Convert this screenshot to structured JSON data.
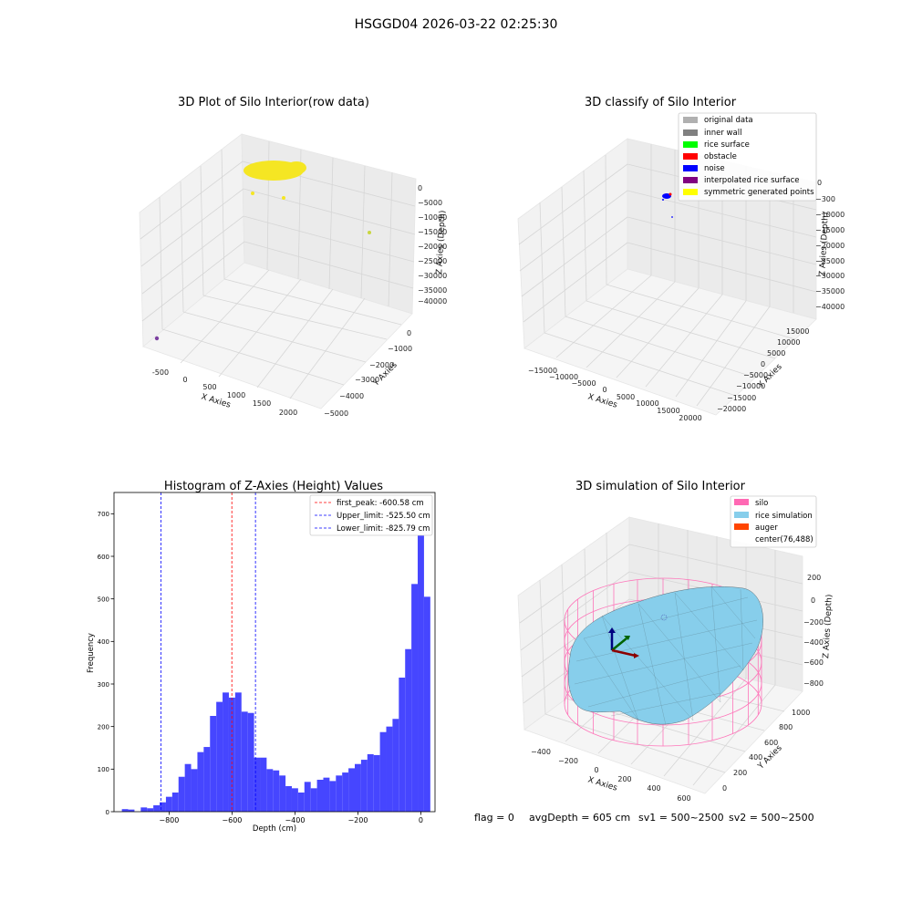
{
  "suptitle": "HSGGD04 2026-03-22 02:25:30",
  "panels": {
    "raw": {
      "title": "3D Plot of Silo Interior(row data)",
      "xlabel": "X Axies",
      "ylabel": "Y Axies",
      "zlabel": "Z Axies (Depth)",
      "xticks": [
        "-500",
        "0",
        "500",
        "1000",
        "1500",
        "2000"
      ],
      "yticks": [
        "0",
        "−1000",
        "−2000",
        "−3000",
        "−4000",
        "−5000"
      ],
      "zticks": [
        "0",
        "−5000",
        "−10000",
        "−15000",
        "−20000",
        "−25000",
        "−30000",
        "−35000",
        "−40000"
      ],
      "colors": {
        "cloud": "#f5e623",
        "point": "#c9d640",
        "outlier": "#7b3fa0"
      }
    },
    "classify": {
      "title": "3D classify of Silo Interior",
      "xlabel": "X Axies",
      "ylabel": "Y Axies",
      "zlabel": "Z Axies (Depth)",
      "xticks": [
        "−15000",
        "−10000",
        "−5000",
        "0",
        "5000",
        "10000",
        "15000",
        "20000"
      ],
      "yticks": [
        "15000",
        "10000",
        "5000",
        "0",
        "−5000",
        "−10000",
        "−15000",
        "−20000"
      ],
      "zticks": [
        "0",
        "−5000",
        "−10000",
        "−15000",
        "−20000",
        "−25000",
        "−30000",
        "−35000",
        "−40000"
      ],
      "zticks_first_visible": "−300",
      "legend": [
        {
          "label": "original data",
          "color": "#b0b0b0"
        },
        {
          "label": "inner wall",
          "color": "#808080"
        },
        {
          "label": "rice surface",
          "color": "#00ff00"
        },
        {
          "label": "obstacle",
          "color": "#ff0000"
        },
        {
          "label": "noise",
          "color": "#0000ff"
        },
        {
          "label": "interpolated rice surface",
          "color": "#800080"
        },
        {
          "label": "symmetric generated points",
          "color": "#ffff00"
        }
      ]
    },
    "simulation": {
      "title": "3D simulation of Silo Interior",
      "xlabel": "X Axies",
      "ylabel": "Y Axies",
      "zlabel": "Z Axies (Depth)",
      "xticks": [
        "−400",
        "−200",
        "0",
        "200",
        "400",
        "600"
      ],
      "yticks": [
        "1000",
        "800",
        "600",
        "400",
        "200",
        "0"
      ],
      "zticks": [
        "200",
        "0",
        "−200",
        "−400",
        "−600",
        "−800"
      ],
      "legend": [
        {
          "label": "silo",
          "color": "#ff69b4"
        },
        {
          "label": "rice simulation",
          "color": "#87ceeb"
        },
        {
          "label": "auger",
          "color": "#ff4500"
        },
        {
          "label": "center(76,488)",
          "color": ""
        }
      ]
    }
  },
  "chart_data": {
    "type": "bar",
    "title": "Histogram of Z-Axies (Height) Values",
    "xlabel": "Depth (cm)",
    "ylabel": "Frequency",
    "xlim": [
      -975,
      45
    ],
    "ylim": [
      0,
      750
    ],
    "xticks": [
      -800,
      -600,
      -400,
      -200,
      0
    ],
    "yticks": [
      0,
      100,
      200,
      300,
      400,
      500,
      600,
      700
    ],
    "bar_color": "#4646ff",
    "bin_start": -950,
    "bin_width": 20,
    "values": [
      6,
      5,
      0,
      10,
      8,
      15,
      22,
      35,
      45,
      82,
      112,
      100,
      140,
      152,
      225,
      258,
      280,
      268,
      280,
      235,
      232,
      127,
      127,
      100,
      97,
      85,
      60,
      55,
      45,
      70,
      55,
      75,
      80,
      72,
      85,
      92,
      102,
      112,
      122,
      135,
      133,
      187,
      200,
      218,
      315,
      382,
      535,
      708,
      505
    ],
    "lines": [
      {
        "label": "first_peak: -600.58 cm",
        "x": -600.58,
        "color": "#ff0000"
      },
      {
        "label": "Upper_limit: -525.50 cm",
        "x": -525.5,
        "color": "#0000ff"
      },
      {
        "label": "Lower_limit: -825.79 cm",
        "x": -825.79,
        "color": "#0000ff"
      }
    ],
    "legend_position": "top-right"
  },
  "status": {
    "flag": "flag = 0",
    "avg_depth": "avgDepth = 605 cm",
    "sv1": "sv1 = 500~2500",
    "sv2": "sv2 = 500~2500"
  }
}
